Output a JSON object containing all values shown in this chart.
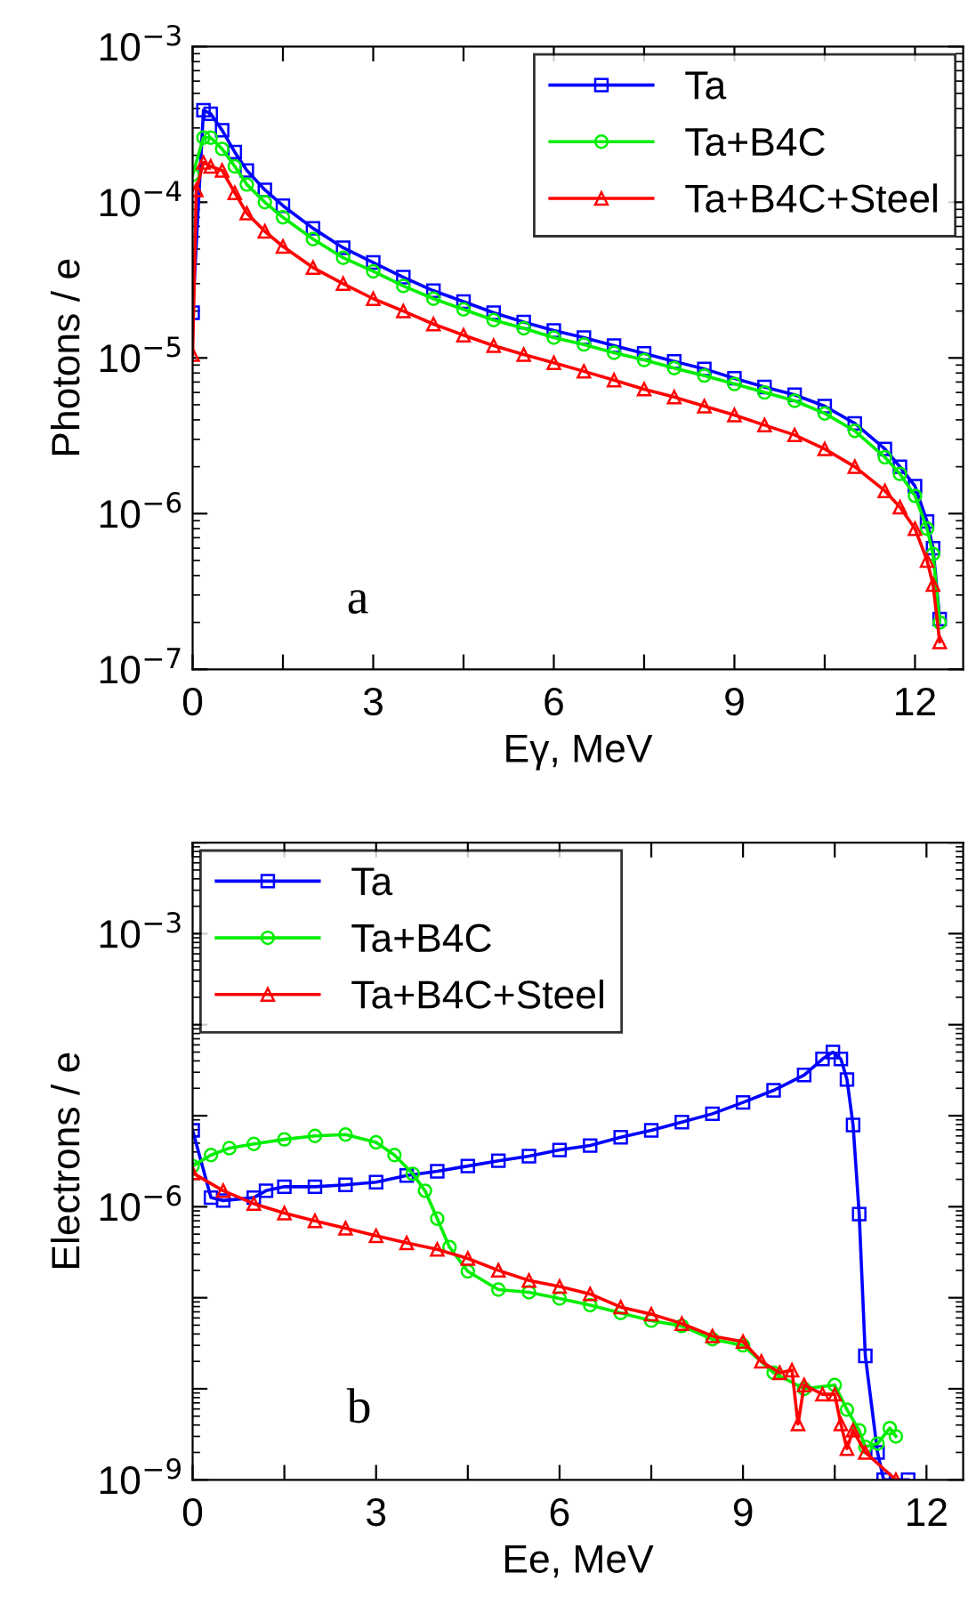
{
  "chart_data": [
    {
      "type": "line",
      "xlabel": "Eγ, MeV",
      "ylabel": "Photons / e",
      "annotations": [
        "a"
      ],
      "log": "y",
      "legend": "top right",
      "line_style": "solid",
      "grid": false,
      "xlim": [
        0,
        12.8
      ],
      "xticks": [
        0,
        {
          "value": 1.5,
          "label": null
        },
        3,
        {
          "value": 4.5,
          "label": null
        },
        6,
        {
          "value": 7.5,
          "label": null
        },
        9,
        {
          "value": 10.5,
          "label": null
        },
        12
      ],
      "ylim": [
        1e-07,
        0.001
      ],
      "yticks": [
        {
          "value": 1e-07,
          "label": "10$^{−7}$"
        },
        {
          "value": 1e-06,
          "label": "10$^{−6}$"
        },
        {
          "value": 1e-05,
          "label": "10$^{−5}$"
        },
        {
          "value": 0.0001,
          "label": "10$^{−4}$"
        },
        {
          "value": 0.001,
          "label": "10$^{−3}$"
        }
      ],
      "series": [
        {
          "name": "Ta",
          "color": "#0000ff",
          "marker": "square",
          "x": [
            0,
            0.18,
            0.3,
            0.49,
            0.7,
            0.9,
            1.2,
            1.5,
            2,
            2.5,
            3,
            3.5,
            4,
            4.5,
            5,
            5.5,
            6,
            6.5,
            7,
            7.5,
            8,
            8.5,
            9,
            9.5,
            10,
            10.5,
            11,
            11.5,
            11.75,
            12,
            12.2,
            12.3,
            12.41
          ],
          "values": [
            1.95e-05,
            0.00039,
            0.00037,
            0.00029,
            0.00021,
            0.00016,
            0.00012,
            9.5e-05,
            6.8e-05,
            5.1e-05,
            4.1e-05,
            3.3e-05,
            2.7e-05,
            2.3e-05,
            1.95e-05,
            1.7e-05,
            1.5e-05,
            1.35e-05,
            1.2e-05,
            1.07e-05,
            9.5e-06,
            8.5e-06,
            7.4e-06,
            6.5e-06,
            5.8e-06,
            4.9e-06,
            3.8e-06,
            2.6e-06,
            2e-06,
            1.5e-06,
            8.9e-07,
            6e-07,
            2.1e-07
          ]
        },
        {
          "name": "Ta+B4C",
          "color": "#00ee00",
          "marker": "circle",
          "x": [
            0,
            0.18,
            0.3,
            0.49,
            0.7,
            0.9,
            1.2,
            1.5,
            2,
            2.5,
            3,
            3.5,
            4,
            4.5,
            5,
            5.5,
            6,
            6.5,
            7,
            7.5,
            8,
            8.5,
            9,
            9.5,
            10,
            10.5,
            11,
            11.5,
            11.75,
            12,
            12.2,
            12.3,
            12.41
          ],
          "values": [
            0.00015,
            0.00026,
            0.00026,
            0.00022,
            0.00017,
            0.00013,
            0.0001,
            8e-05,
            5.8e-05,
            4.4e-05,
            3.6e-05,
            2.9e-05,
            2.4e-05,
            2.05e-05,
            1.75e-05,
            1.55e-05,
            1.35e-05,
            1.22e-05,
            1.08e-05,
            9.7e-06,
            8.6e-06,
            7.7e-06,
            6.8e-06,
            6e-06,
            5.3e-06,
            4.4e-06,
            3.4e-06,
            2.3e-06,
            1.8e-06,
            1.3e-06,
            8e-07,
            5.5e-07,
            2e-07
          ]
        },
        {
          "name": "Ta+B4C+Steel",
          "color": "#ff0000",
          "marker": "triangle",
          "x": [
            0,
            0.06,
            0.18,
            0.3,
            0.49,
            0.7,
            0.9,
            1.2,
            1.5,
            2,
            2.5,
            3,
            3.5,
            4,
            4.5,
            5,
            5.5,
            6,
            6.5,
            7,
            7.5,
            8,
            8.5,
            9,
            9.5,
            10,
            10.5,
            11,
            11.5,
            11.75,
            12,
            12.2,
            12.3,
            12.41
          ],
          "values": [
            1.05e-05,
            0.00012,
            0.00018,
            0.00017,
            0.00016,
            0.000115,
            8.5e-05,
            6.5e-05,
            5.2e-05,
            3.8e-05,
            3e-05,
            2.4e-05,
            2e-05,
            1.65e-05,
            1.4e-05,
            1.2e-05,
            1.05e-05,
            9.3e-06,
            8.2e-06,
            7.2e-06,
            6.3e-06,
            5.6e-06,
            4.9e-06,
            4.3e-06,
            3.7e-06,
            3.2e-06,
            2.6e-06,
            2e-06,
            1.4e-06,
            1.1e-06,
            8e-07,
            5e-07,
            3.5e-07,
            1.5e-07
          ]
        }
      ]
    },
    {
      "type": "line",
      "xlabel": "Ee, MeV",
      "ylabel": "Electrons / e",
      "annotations": [
        "b"
      ],
      "log": "y",
      "legend": "top left",
      "line_style": "solid",
      "grid": false,
      "xlim": [
        0,
        12.6
      ],
      "xticks": [
        0,
        {
          "value": 1.5,
          "label": null
        },
        3,
        {
          "value": 4.5,
          "label": null
        },
        6,
        {
          "value": 7.5,
          "label": null
        },
        9,
        {
          "value": 10.5,
          "label": null
        },
        12
      ],
      "ylim": [
        1e-09,
        0.01
      ],
      "yticks": [
        {
          "value": 1e-09,
          "label": "10$^{−9}$"
        },
        {
          "value": 1e-08,
          "label": null
        },
        {
          "value": 1e-07,
          "label": null
        },
        {
          "value": 1e-06,
          "label": "10$^{−6}$"
        },
        {
          "value": 1e-05,
          "label": null
        },
        {
          "value": 0.0001,
          "label": null
        },
        {
          "value": 0.001,
          "label": "10$^{−3}$"
        },
        {
          "value": 0.01,
          "label": null
        }
      ],
      "series": [
        {
          "name": "Ta",
          "color": "#0000ff",
          "marker": "square",
          "x": [
            0,
            0.3,
            0.5,
            1.0,
            1.2,
            1.5,
            2.0,
            2.5,
            3.0,
            3.5,
            4.0,
            4.5,
            5.0,
            5.5,
            6.0,
            6.5,
            7.0,
            7.5,
            8.0,
            8.5,
            9.0,
            9.5,
            10.0,
            10.3,
            10.47,
            10.6,
            10.7,
            10.8,
            10.9,
            11.0,
            11.2,
            11.3,
            11.7
          ],
          "values": [
            6.9e-06,
            1.26e-06,
            1.17e-06,
            1.26e-06,
            1.5e-06,
            1.66e-06,
            1.66e-06,
            1.74e-06,
            1.86e-06,
            2.2e-06,
            2.45e-06,
            2.8e-06,
            3.2e-06,
            3.6e-06,
            4.2e-06,
            4.7e-06,
            5.8e-06,
            6.9e-06,
            8.5e-06,
            1.05e-05,
            1.4e-05,
            1.9e-05,
            2.8e-05,
            4.2e-05,
            5e-05,
            4.2e-05,
            2.5e-05,
            7.9e-06,
            8.3e-07,
            2.3e-08,
            2e-09,
            1e-09,
            1e-09
          ]
        },
        {
          "name": "Ta+B4C",
          "color": "#00ee00",
          "marker": "circle",
          "x": [
            0,
            0.3,
            0.6,
            1.0,
            1.5,
            2.0,
            2.5,
            3.0,
            3.3,
            3.6,
            3.8,
            4.0,
            4.2,
            4.5,
            5.0,
            5.5,
            6.0,
            6.5,
            7.0,
            7.5,
            8.0,
            8.5,
            9.0,
            9.5,
            10.0,
            10.5,
            10.7,
            10.9,
            11.0,
            11.2,
            11.4,
            11.5
          ],
          "values": [
            2.8e-06,
            3.7e-06,
            4.4e-06,
            4.9e-06,
            5.5e-06,
            6e-06,
            6.2e-06,
            5.1e-06,
            3.7e-06,
            2.3e-06,
            1.5e-06,
            7.4e-07,
            3.6e-07,
            1.95e-07,
            1.23e-07,
            1.15e-07,
            9.8e-08,
            8.3e-08,
            6.8e-08,
            5.6e-08,
            4.9e-08,
            3.5e-08,
            3e-08,
            1.5e-08,
            1e-08,
            1.1e-08,
            5.9e-09,
            3.5e-09,
            2.3e-09,
            2.5e-09,
            3.7e-09,
            3e-09
          ]
        },
        {
          "name": "Ta+B4C+Steel",
          "color": "#ff0000",
          "marker": "triangle",
          "x": [
            0,
            0.5,
            1.0,
            1.5,
            2.0,
            2.5,
            3.0,
            3.5,
            4.0,
            4.5,
            5.0,
            5.5,
            6.0,
            6.5,
            7.0,
            7.5,
            8.0,
            8.5,
            9.0,
            9.3,
            9.6,
            9.8,
            9.9,
            10.0,
            10.3,
            10.5,
            10.6,
            10.7,
            10.8,
            11.0,
            11.5
          ],
          "values": [
            2.35e-06,
            1.5e-06,
            1.08e-06,
            8.5e-07,
            7e-07,
            5.8e-07,
            4.8e-07,
            4e-07,
            3.4e-07,
            2.7e-07,
            2e-07,
            1.55e-07,
            1.33e-07,
            1.1e-07,
            7.9e-08,
            6.6e-08,
            5.2e-08,
            3.8e-08,
            3.3e-08,
            2e-08,
            1.5e-08,
            1.6e-08,
            4.1e-09,
            1.1e-08,
            8.7e-09,
            8.7e-09,
            4.1e-09,
            2.2e-09,
            3.5e-09,
            2e-09,
            1e-09
          ]
        }
      ]
    }
  ]
}
